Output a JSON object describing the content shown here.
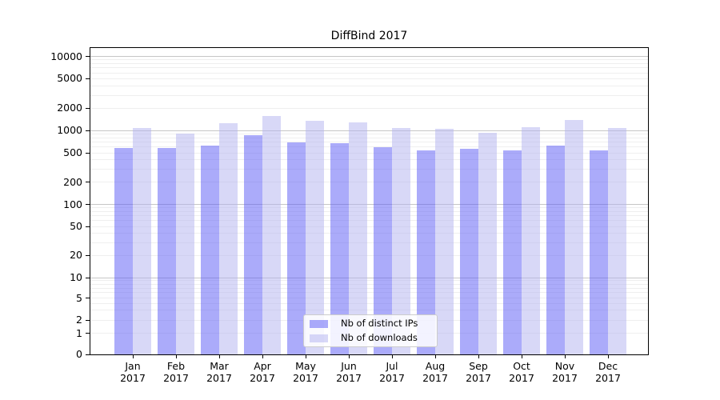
{
  "chart_data": {
    "type": "bar",
    "title": "DiffBind 2017",
    "categories": [
      "Jan 2017",
      "Feb 2017",
      "Mar 2017",
      "Apr 2017",
      "May 2017",
      "Jun 2017",
      "Jul 2017",
      "Aug 2017",
      "Sep 2017",
      "Oct 2017",
      "Nov 2017",
      "Dec 2017"
    ],
    "series": [
      {
        "name": "Nb of distinct IPs",
        "color": "rgba(88,88,245,0.5)",
        "values": [
          580,
          580,
          630,
          860,
          700,
          670,
          590,
          540,
          565,
          545,
          630,
          535
        ]
      },
      {
        "name": "Nb of downloads",
        "color": "rgba(178,178,240,0.5)",
        "values": [
          1090,
          920,
          1260,
          1580,
          1370,
          1300,
          1080,
          1060,
          930,
          1120,
          1400,
          1090
        ]
      }
    ],
    "yticks": [
      0,
      1,
      2,
      5,
      10,
      20,
      50,
      100,
      200,
      500,
      1000,
      2000,
      5000,
      10000
    ],
    "ylim": [
      0,
      13000
    ],
    "yscale": "log",
    "xlabel": "",
    "ylabel": "",
    "grid": "horizontal minor+major",
    "legend_position": "lower center",
    "colors": {
      "major_grid": "#c6c6c6",
      "minor_grid": "#efefef",
      "axis": "#000000",
      "background": "#ffffff"
    }
  }
}
